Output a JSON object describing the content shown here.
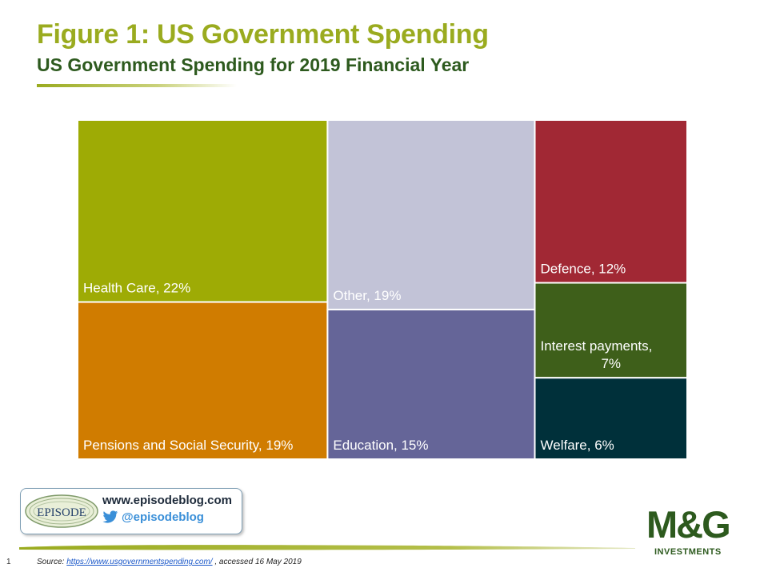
{
  "header": {
    "title": "Figure 1: US Government Spending",
    "subtitle": "US Government Spending for 2019 Financial Year"
  },
  "chart_data": {
    "type": "treemap",
    "items": [
      {
        "label": "Health Care, 22%",
        "name": "Health Care",
        "value": 22,
        "color": "#9eab05"
      },
      {
        "label": "Pensions and Social Security, 19%",
        "name": "Pensions and Social Security",
        "value": 19,
        "color": "#d07c00"
      },
      {
        "label": "Other, 19%",
        "name": "Other",
        "value": 19,
        "color": "#c2c3d7"
      },
      {
        "label": "Education, 15%",
        "name": "Education",
        "value": 15,
        "color": "#656598"
      },
      {
        "label": "Defence, 12%",
        "name": "Defence",
        "value": 12,
        "color": "#a12834"
      },
      {
        "label": "Interest payments, 7%",
        "name": "Interest payments",
        "value": 7,
        "color": "#3e5f1a"
      },
      {
        "label": "Welfare, 6%",
        "name": "Welfare",
        "value": 6,
        "color": "#00303a"
      }
    ]
  },
  "branding": {
    "episode_logo_text": "EPISODE",
    "url": "www.episodeblog.com",
    "twitter": "@episodeblog",
    "mg_logo": "M&G",
    "mg_sub": "INVESTMENTS"
  },
  "footer": {
    "slide_number": "1",
    "source_prefix": "Source: ",
    "source_link": "https://www.usgovernmentspending.com/",
    "source_suffix": " , accessed 16 May 2019"
  }
}
